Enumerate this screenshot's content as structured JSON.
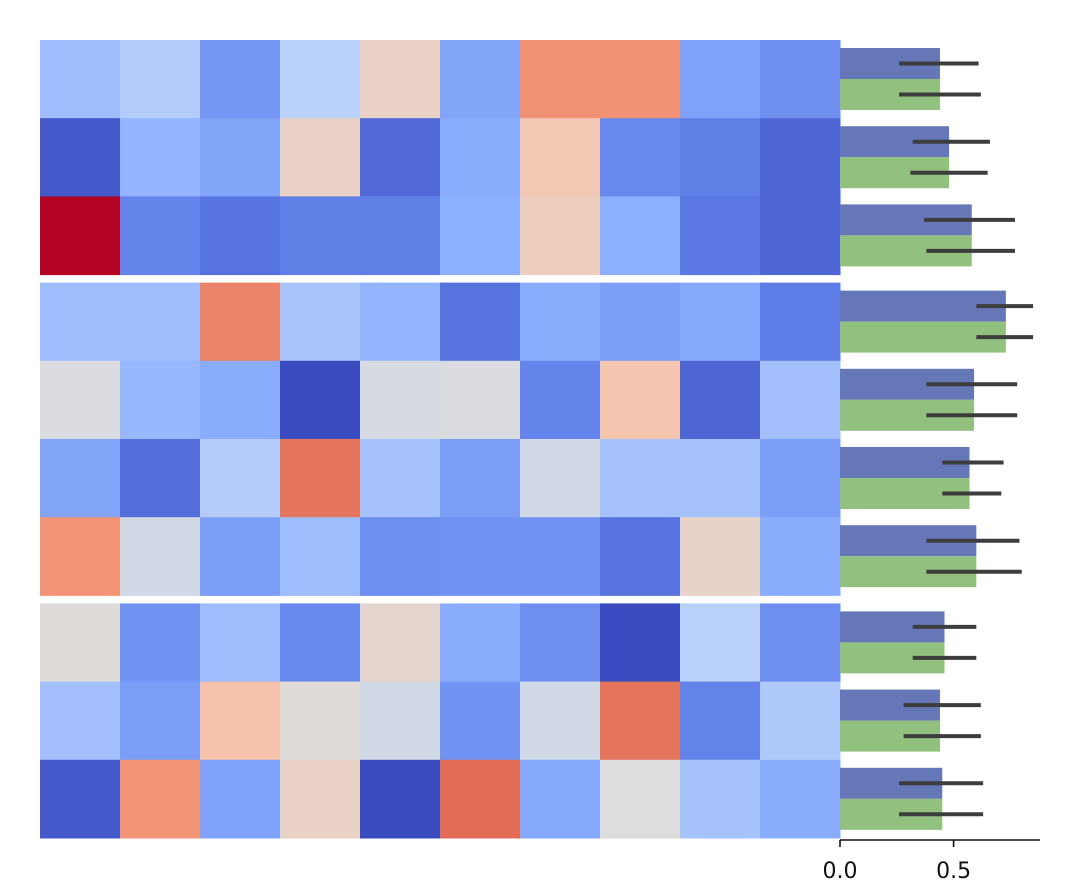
{
  "chart_data": [
    {
      "type": "heatmap",
      "colormap": "coolwarm",
      "value_range": [
        0,
        1
      ],
      "row_groups": [
        3,
        4,
        3
      ],
      "values": [
        [
          0.3,
          0.36,
          0.18,
          0.38,
          0.56,
          0.22,
          0.77,
          0.77,
          0.21,
          0.16
        ],
        [
          0.03,
          0.27,
          0.22,
          0.56,
          0.07,
          0.24,
          0.61,
          0.14,
          0.12,
          0.06
        ],
        [
          1.0,
          0.13,
          0.09,
          0.12,
          0.12,
          0.25,
          0.58,
          0.25,
          0.1,
          0.06
        ],
        [
          0.3,
          0.3,
          0.8,
          0.33,
          0.27,
          0.09,
          0.24,
          0.2,
          0.23,
          0.11
        ],
        [
          0.49,
          0.28,
          0.24,
          0.0,
          0.48,
          0.49,
          0.13,
          0.62,
          0.06,
          0.31
        ],
        [
          0.22,
          0.08,
          0.36,
          0.83,
          0.32,
          0.2,
          0.46,
          0.32,
          0.32,
          0.2
        ],
        [
          0.76,
          0.46,
          0.2,
          0.3,
          0.16,
          0.17,
          0.17,
          0.09,
          0.55,
          0.24
        ],
        [
          0.51,
          0.17,
          0.3,
          0.14,
          0.54,
          0.24,
          0.16,
          0.0,
          0.38,
          0.16
        ],
        [
          0.31,
          0.2,
          0.63,
          0.51,
          0.46,
          0.17,
          0.46,
          0.83,
          0.13,
          0.35
        ],
        [
          0.03,
          0.76,
          0.21,
          0.56,
          0.0,
          0.85,
          0.23,
          0.5,
          0.32,
          0.24
        ]
      ]
    },
    {
      "type": "bar",
      "orientation": "horizontal",
      "xlim": [
        0,
        0.88
      ],
      "xticks": [
        "0.0",
        "0.5"
      ],
      "colors": [
        "#6577b6",
        "#92c07e"
      ],
      "series": [
        {
          "values": [
            0.44,
            0.48,
            0.58,
            0.73,
            0.59,
            0.57,
            0.6,
            0.46,
            0.44,
            0.45
          ],
          "err_low": [
            0.26,
            0.32,
            0.37,
            0.6,
            0.38,
            0.45,
            0.38,
            0.32,
            0.28,
            0.26
          ],
          "err_high": [
            0.61,
            0.66,
            0.77,
            0.85,
            0.78,
            0.72,
            0.79,
            0.6,
            0.62,
            0.63
          ]
        },
        {
          "values": [
            0.44,
            0.48,
            0.58,
            0.73,
            0.59,
            0.57,
            0.6,
            0.46,
            0.44,
            0.45
          ],
          "err_low": [
            0.26,
            0.31,
            0.38,
            0.6,
            0.38,
            0.45,
            0.38,
            0.32,
            0.28,
            0.26
          ],
          "err_high": [
            0.62,
            0.65,
            0.77,
            0.85,
            0.78,
            0.71,
            0.8,
            0.6,
            0.62,
            0.63
          ]
        }
      ]
    }
  ]
}
